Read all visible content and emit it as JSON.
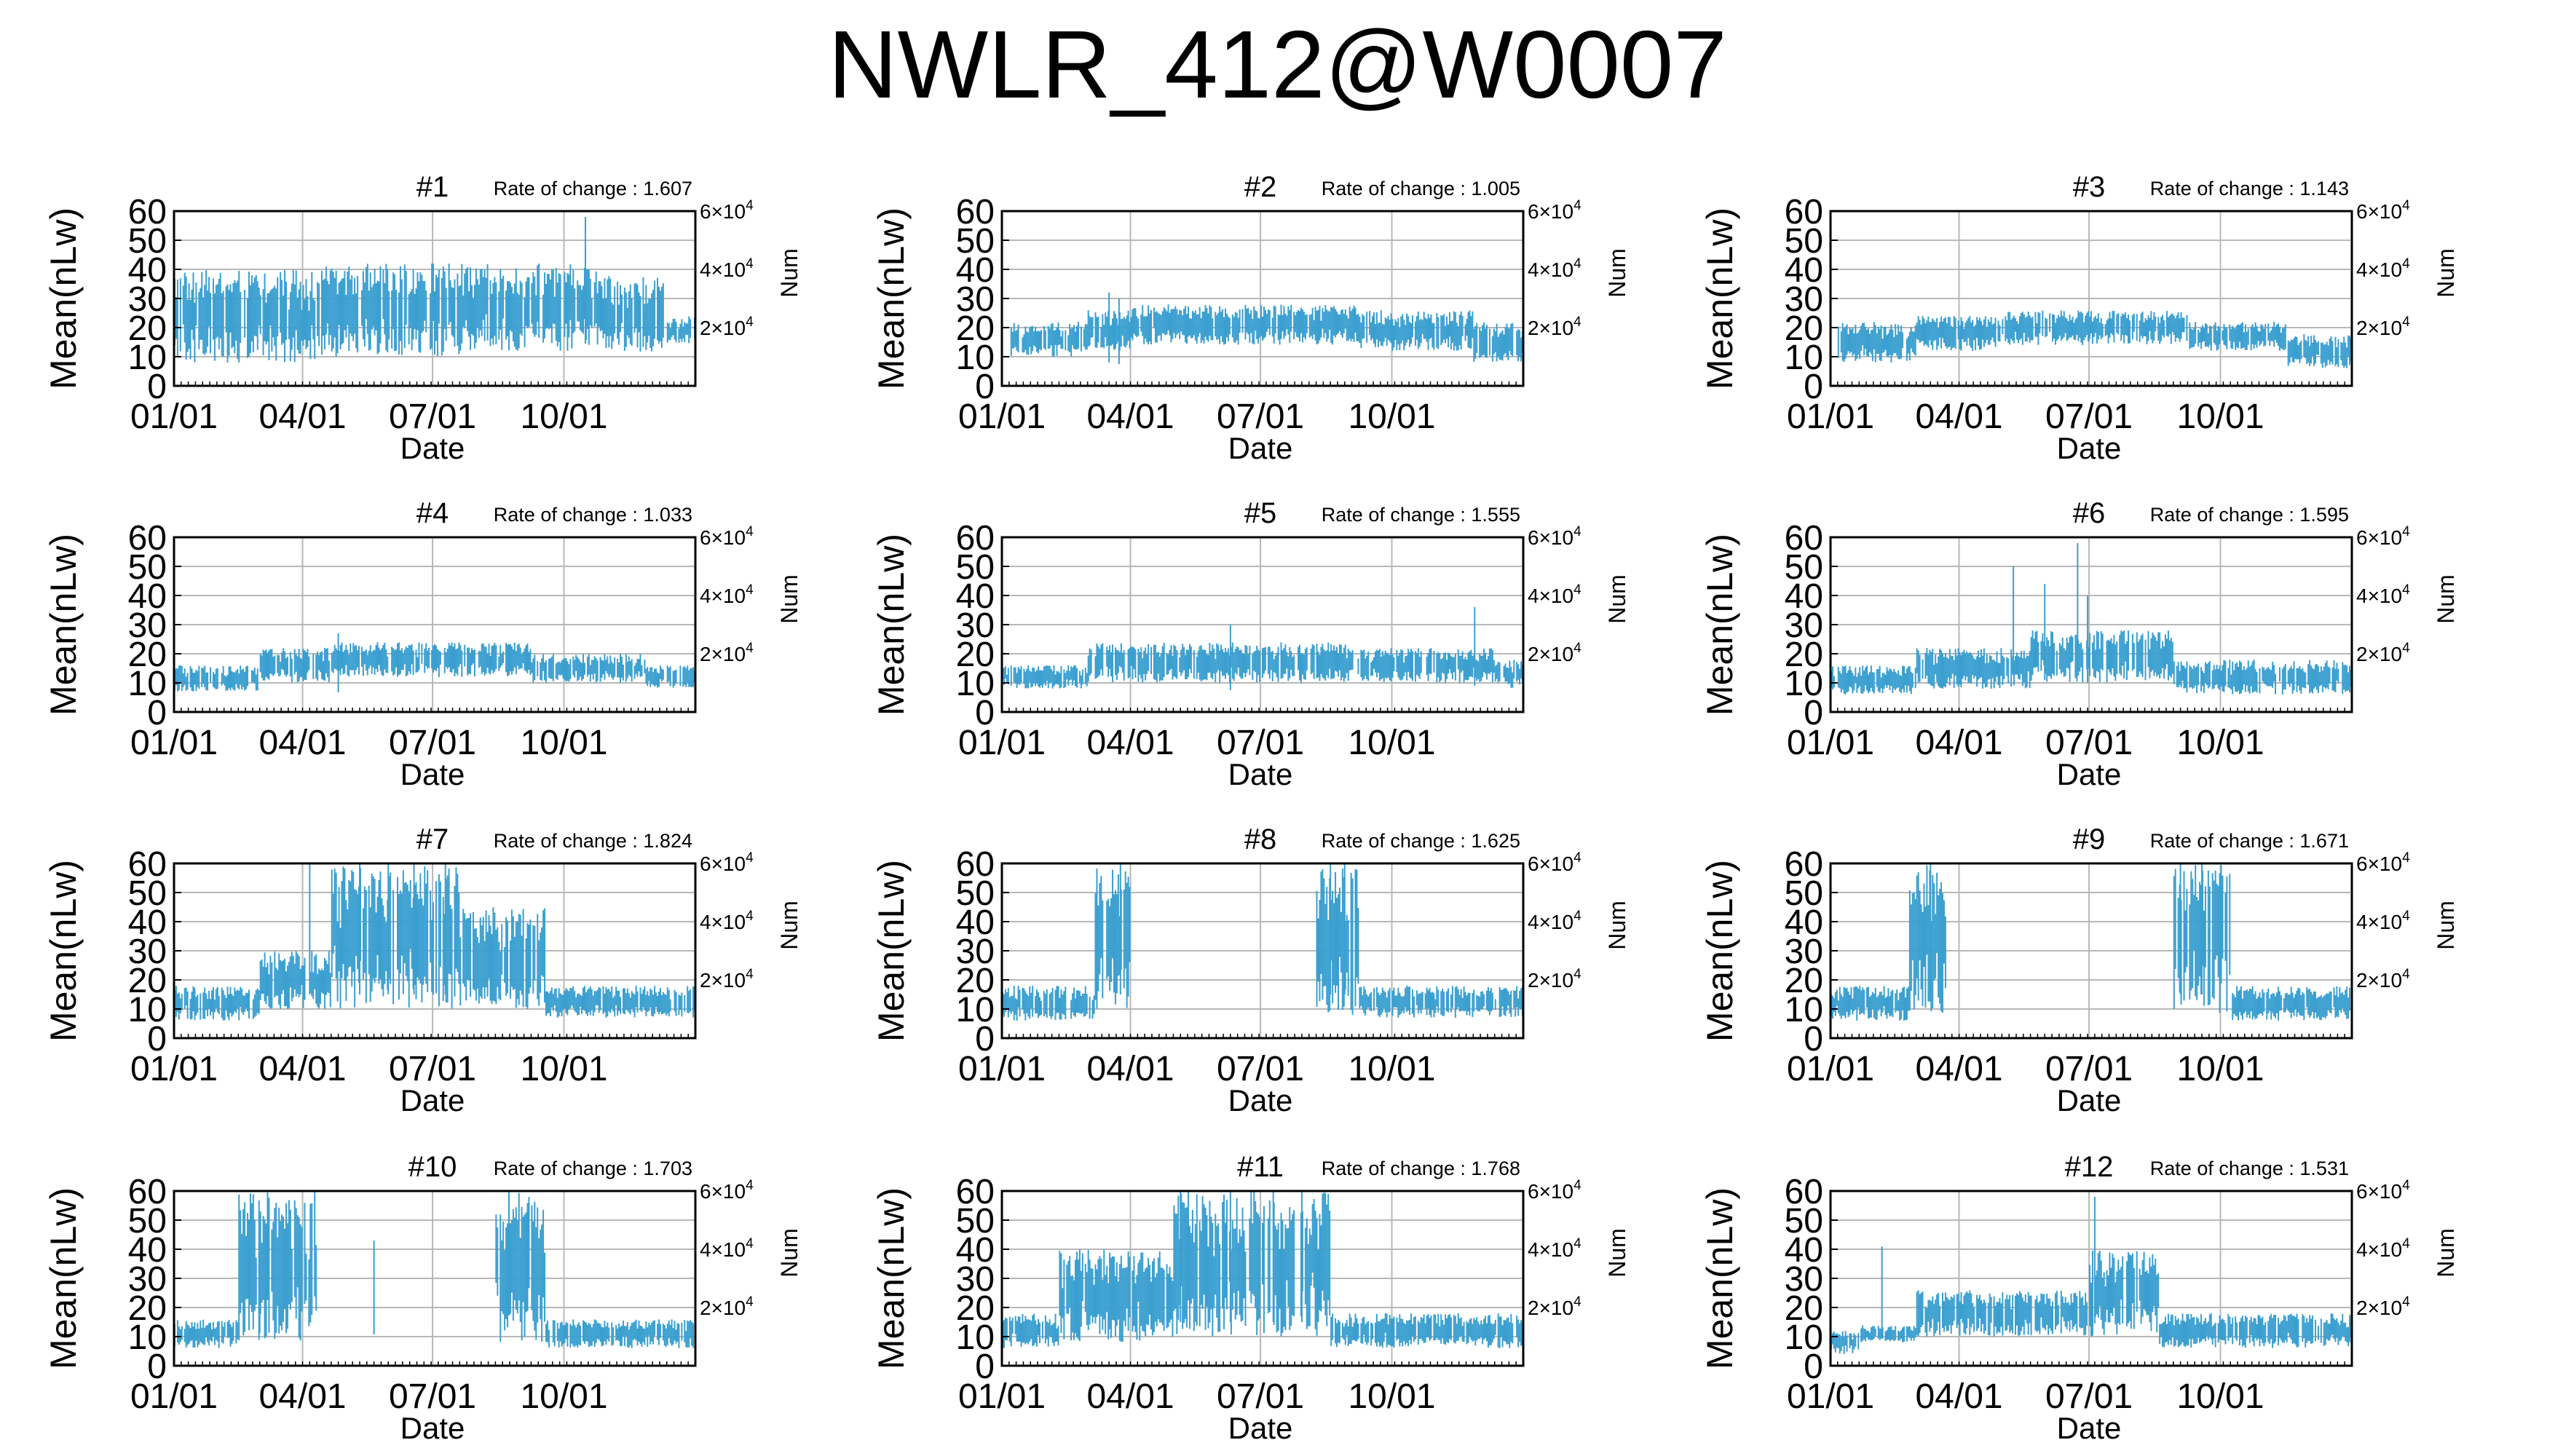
{
  "title": "NWLR_412@W0007",
  "chart_data": {
    "type": "bar",
    "description": "Twelve panels of daily mean values (vertical error bars) over one year",
    "shared": {
      "xlabel": "Date",
      "ylabel": "Mean(nLw)",
      "y2label": "Num",
      "xticks": [
        "01/01",
        "04/01",
        "07/01",
        "10/01"
      ],
      "xtick_days": [
        0,
        90,
        181,
        273
      ],
      "xlim_days": [
        0,
        365
      ],
      "ylim": [
        0,
        60
      ],
      "yticks": [
        0,
        10,
        20,
        30,
        40,
        50,
        60
      ],
      "y2ticks": [
        {
          "value": 20000,
          "mantissa": "2",
          "exponent": "4"
        },
        {
          "value": 40000,
          "mantissa": "4",
          "exponent": "4"
        },
        {
          "value": 60000,
          "mantissa": "6",
          "exponent": "4"
        }
      ],
      "y2lim": [
        0,
        60000
      ],
      "rate_prefix": "Rate of change : ",
      "grid": true,
      "series_color": "#3a9fd0"
    },
    "panels": [
      {
        "name": "#1",
        "rate": "1.607",
        "bands": [
          [
            0,
            100,
            8,
            40
          ],
          [
            100,
            200,
            10,
            42
          ],
          [
            200,
            300,
            12,
            42
          ],
          [
            300,
            345,
            10,
            38
          ],
          [
            345,
            365,
            14,
            24
          ]
        ],
        "spikes": [
          [
            288,
            58
          ]
        ]
      },
      {
        "name": "#2",
        "rate": "1.005",
        "bands": [
          [
            5,
            60,
            10,
            22
          ],
          [
            60,
            90,
            12,
            26
          ],
          [
            90,
            250,
            14,
            28
          ],
          [
            250,
            330,
            12,
            26
          ],
          [
            330,
            365,
            8,
            22
          ]
        ],
        "spikes": [
          [
            75,
            32
          ],
          [
            82,
            30
          ]
        ]
      },
      {
        "name": "#3",
        "rate": "1.143",
        "bands": [
          [
            5,
            60,
            8,
            22
          ],
          [
            60,
            120,
            12,
            24
          ],
          [
            120,
            250,
            14,
            26
          ],
          [
            250,
            320,
            12,
            22
          ],
          [
            320,
            365,
            6,
            18
          ]
        ],
        "spikes": []
      },
      {
        "name": "#4",
        "rate": "1.033",
        "bands": [
          [
            0,
            60,
            7,
            16
          ],
          [
            60,
            110,
            10,
            22
          ],
          [
            110,
            250,
            12,
            24
          ],
          [
            250,
            330,
            10,
            20
          ],
          [
            330,
            365,
            8,
            16
          ]
        ],
        "spikes": [
          [
            115,
            27
          ]
        ]
      },
      {
        "name": "#5",
        "rate": "1.555",
        "bands": [
          [
            0,
            60,
            8,
            16
          ],
          [
            60,
            250,
            10,
            24
          ],
          [
            250,
            345,
            10,
            22
          ],
          [
            345,
            365,
            8,
            18
          ]
        ],
        "spikes": [
          [
            160,
            30
          ],
          [
            331,
            36
          ]
        ]
      },
      {
        "name": "#6",
        "rate": "1.595",
        "bands": [
          [
            0,
            60,
            6,
            16
          ],
          [
            60,
            140,
            8,
            22
          ],
          [
            140,
            240,
            10,
            28
          ],
          [
            240,
            365,
            6,
            18
          ]
        ],
        "spikes": [
          [
            128,
            50
          ],
          [
            150,
            44
          ],
          [
            173,
            58
          ],
          [
            180,
            40
          ]
        ]
      },
      {
        "name": "#7",
        "rate": "1.824",
        "bands": [
          [
            0,
            60,
            6,
            18
          ],
          [
            60,
            110,
            10,
            30
          ],
          [
            110,
            200,
            10,
            60
          ],
          [
            200,
            260,
            10,
            45
          ],
          [
            260,
            365,
            7,
            18
          ]
        ],
        "spikes": [
          [
            95,
            60
          ],
          [
            130,
            60
          ],
          [
            150,
            60
          ],
          [
            168,
            60
          ],
          [
            190,
            60
          ]
        ]
      },
      {
        "name": "#8",
        "rate": "1.625",
        "bands": [
          [
            0,
            65,
            6,
            18
          ],
          [
            65,
            90,
            8,
            60
          ],
          [
            220,
            250,
            6,
            60
          ],
          [
            250,
            365,
            7,
            18
          ]
        ],
        "spikes": [
          [
            83,
            60
          ],
          [
            230,
            60
          ],
          [
            240,
            60
          ]
        ]
      },
      {
        "name": "#9",
        "rate": "1.671",
        "bands": [
          [
            0,
            55,
            6,
            18
          ],
          [
            55,
            82,
            8,
            60
          ],
          [
            240,
            280,
            8,
            60
          ],
          [
            280,
            365,
            6,
            18
          ]
        ],
        "spikes": [
          [
            70,
            60
          ],
          [
            245,
            60
          ],
          [
            260,
            60
          ]
        ]
      },
      {
        "name": "#10",
        "rate": "1.703",
        "bands": [
          [
            0,
            45,
            6,
            16
          ],
          [
            45,
            100,
            8,
            60
          ],
          [
            225,
            260,
            8,
            60
          ],
          [
            260,
            365,
            6,
            16
          ]
        ],
        "spikes": [
          [
            60,
            45
          ],
          [
            140,
            43
          ]
        ]
      },
      {
        "name": "#11",
        "rate": "1.768",
        "bands": [
          [
            0,
            40,
            6,
            18
          ],
          [
            40,
            120,
            8,
            40
          ],
          [
            120,
            230,
            10,
            60
          ],
          [
            230,
            365,
            6,
            18
          ]
        ],
        "spikes": [
          [
            125,
            60
          ],
          [
            160,
            60
          ],
          [
            190,
            60
          ],
          [
            210,
            60
          ]
        ]
      },
      {
        "name": "#12",
        "rate": "1.531",
        "bands": [
          [
            0,
            20,
            4,
            12
          ],
          [
            20,
            60,
            8,
            14
          ],
          [
            60,
            180,
            10,
            26
          ],
          [
            180,
            230,
            10,
            40
          ],
          [
            230,
            365,
            6,
            18
          ]
        ],
        "spikes": [
          [
            36,
            41
          ],
          [
            185,
            58
          ]
        ]
      }
    ]
  }
}
